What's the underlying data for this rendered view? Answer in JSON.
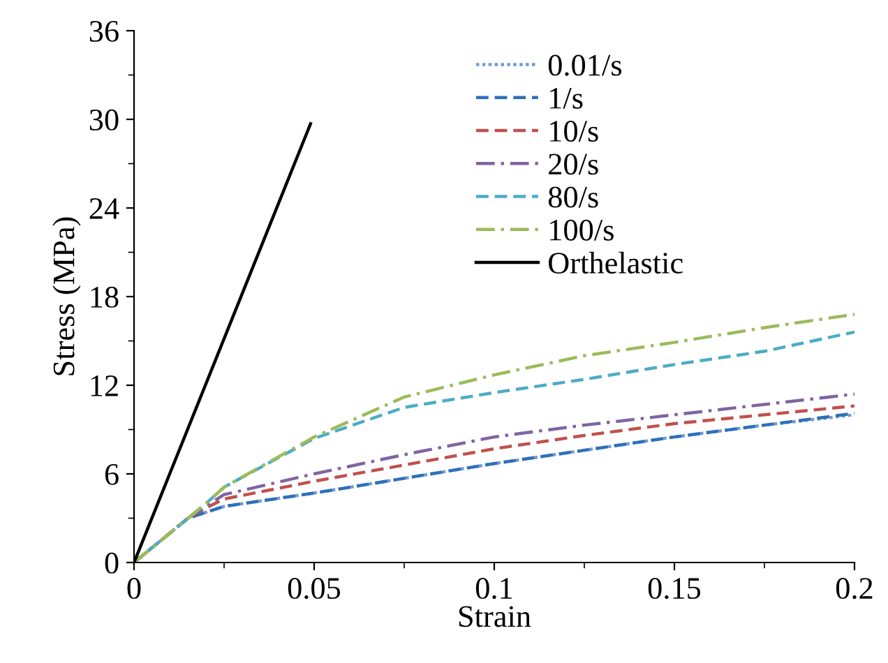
{
  "chart_data": {
    "type": "line",
    "xlabel": "Strain",
    "ylabel": "Stress (MPa)",
    "x": [
      0,
      0.01,
      0.015,
      0.02,
      0.025,
      0.05,
      0.075,
      0.1,
      0.125,
      0.15,
      0.175,
      0.2
    ],
    "series": [
      {
        "name": "0.01/s",
        "color": "#6f9bd6",
        "line_style": "dotted",
        "values": [
          0,
          2.0,
          3.0,
          3.4,
          3.8,
          4.7,
          5.7,
          6.7,
          7.6,
          8.5,
          9.3,
          10.0
        ]
      },
      {
        "name": "1/s",
        "color": "#2e6fba",
        "line_style": "dashed",
        "values": [
          0,
          2.0,
          3.0,
          3.4,
          3.8,
          4.7,
          5.7,
          6.7,
          7.6,
          8.5,
          9.3,
          10.1
        ]
      },
      {
        "name": "10/s",
        "color": "#c0504d",
        "line_style": "dashed",
        "values": [
          0,
          2.0,
          3.0,
          3.7,
          4.3,
          5.5,
          6.6,
          7.7,
          8.6,
          9.4,
          10.0,
          10.6
        ]
      },
      {
        "name": "20/s",
        "color": "#8064a2",
        "line_style": "dashdot",
        "values": [
          0,
          2.0,
          3.0,
          3.8,
          4.6,
          6.0,
          7.3,
          8.5,
          9.3,
          10.0,
          10.7,
          11.4
        ]
      },
      {
        "name": "80/s",
        "color": "#4bacc6",
        "line_style": "dashed",
        "values": [
          0,
          2.0,
          3.0,
          4.0,
          5.1,
          8.4,
          10.5,
          11.5,
          12.4,
          13.4,
          14.3,
          15.6
        ]
      },
      {
        "name": "100/s",
        "color": "#9bbb59",
        "line_style": "dashdot",
        "values": [
          0,
          2.0,
          3.0,
          4.0,
          5.1,
          8.5,
          11.2,
          12.7,
          14.0,
          14.9,
          15.9,
          16.8
        ]
      },
      {
        "name": "Orthelastic",
        "color": "#000000",
        "line_style": "solid",
        "x": [
          0,
          0.049
        ],
        "values": [
          0,
          29.7
        ]
      }
    ],
    "xlim": [
      0,
      0.2
    ],
    "xticks": [
      0,
      0.05,
      0.1,
      0.15,
      0.2
    ],
    "ylim": [
      0,
      36
    ],
    "yticks": [
      0,
      6,
      12,
      18,
      24,
      30,
      36
    ],
    "grid": false,
    "legend": "top right"
  }
}
